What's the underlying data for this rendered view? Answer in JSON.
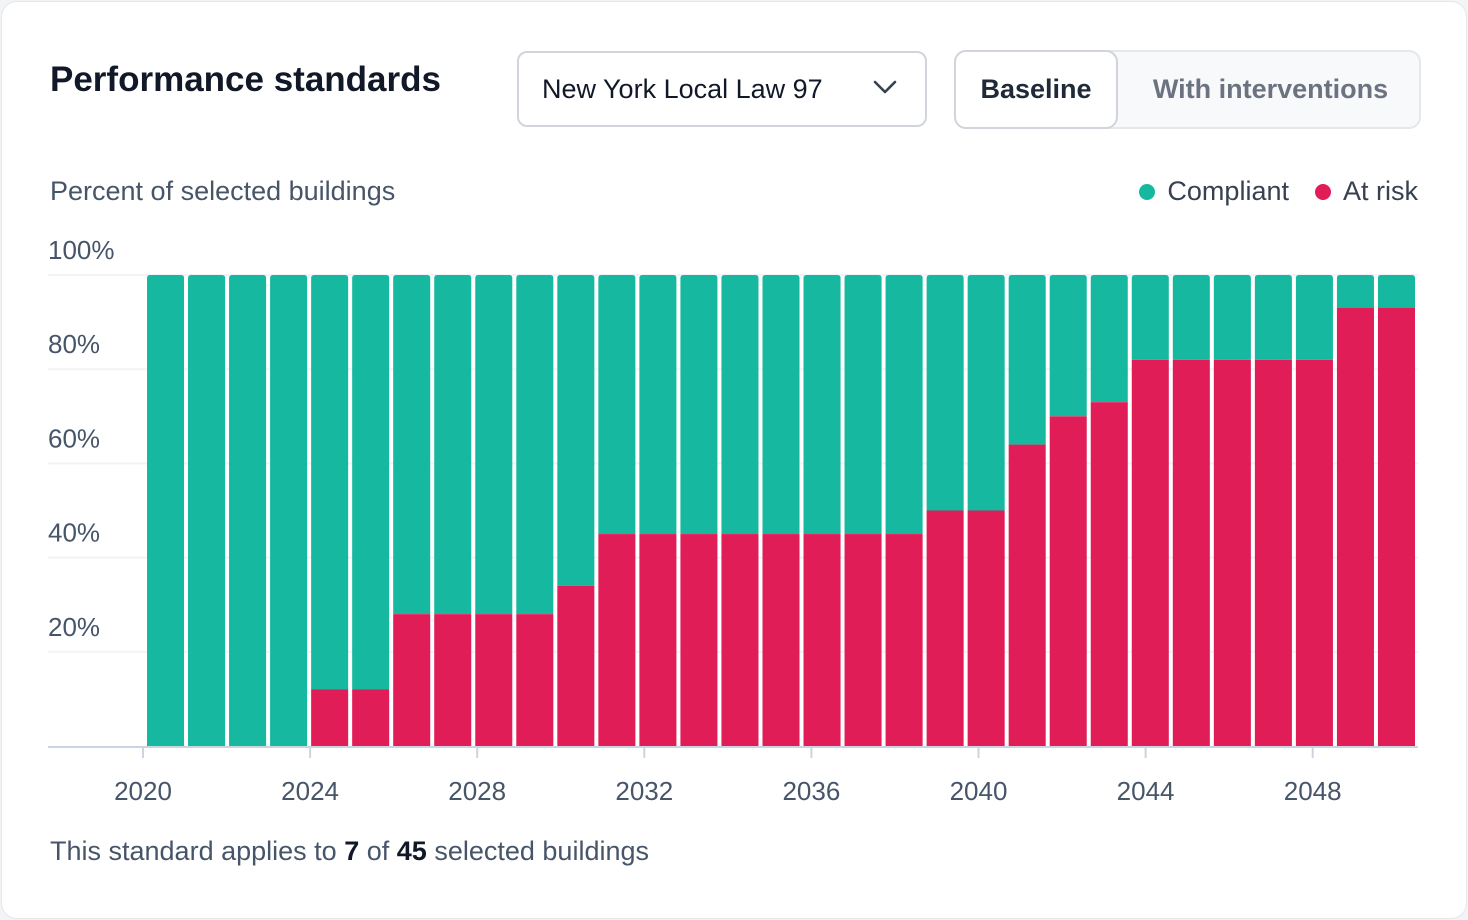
{
  "header": {
    "title": "Performance standards",
    "standard_select": {
      "value": "New York Local Law 97",
      "icon": "chevron-down-icon"
    },
    "scenario_toggle": {
      "options": [
        "Baseline",
        "With interventions"
      ],
      "selected": "Baseline"
    }
  },
  "footer": {
    "prefix": "This standard applies to",
    "count": "7",
    "of": "of",
    "total": "45",
    "suffix": "selected buildings"
  },
  "chart_data": {
    "type": "bar",
    "stacked": true,
    "ylabel": "Percent of selected buildings",
    "yticks": [
      "20%",
      "40%",
      "60%",
      "80%",
      "100%"
    ],
    "ylim": [
      0,
      100
    ],
    "xticks": [
      "2020",
      "2024",
      "2028",
      "2032",
      "2036",
      "2040",
      "2044",
      "2048"
    ],
    "grid": true,
    "legend_position": "top-right",
    "categories": [
      2020,
      2021,
      2022,
      2023,
      2024,
      2025,
      2026,
      2027,
      2028,
      2029,
      2030,
      2031,
      2032,
      2033,
      2034,
      2035,
      2036,
      2037,
      2038,
      2039,
      2040,
      2041,
      2042,
      2043,
      2044,
      2045,
      2046,
      2047,
      2048,
      2049,
      2050
    ],
    "series": [
      {
        "name": "At risk",
        "color": "#e11d57",
        "values": [
          0,
          0,
          0,
          0,
          12,
          12,
          28,
          28,
          28,
          28,
          34,
          45,
          45,
          45,
          45,
          45,
          45,
          45,
          45,
          50,
          50,
          64,
          70,
          73,
          82,
          82,
          82,
          82,
          82,
          93,
          93
        ]
      },
      {
        "name": "Compliant",
        "color": "#16b89f",
        "values": [
          100,
          100,
          100,
          100,
          88,
          88,
          72,
          72,
          72,
          72,
          66,
          55,
          55,
          55,
          55,
          55,
          55,
          55,
          55,
          50,
          50,
          36,
          30,
          27,
          18,
          18,
          18,
          18,
          18,
          7,
          7
        ]
      }
    ]
  }
}
